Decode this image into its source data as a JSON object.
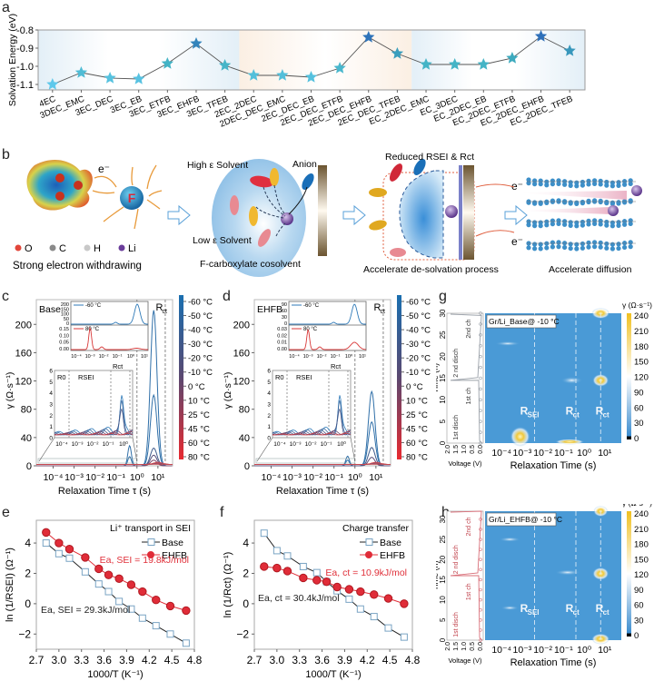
{
  "panel_labels": {
    "a": "a",
    "b": "b",
    "c": "c",
    "d": "d",
    "e": "e",
    "f": "f",
    "g": "g",
    "h": "h"
  },
  "chart_data": [
    {
      "id": "a",
      "type": "line",
      "marker": "star",
      "ylabel": "Solvation Energy (eV)",
      "ylim": [
        -1.13,
        -0.8
      ],
      "yticks": [
        "-0.8",
        "-0.9",
        "-1.0",
        "-1.1"
      ],
      "yticks_values": [
        -0.8,
        -0.9,
        -1.0,
        -1.1
      ],
      "categories": [
        "4EC",
        "3DEC_EMC",
        "3EC_DEC",
        "3EC_EB",
        "3EC_ETFB",
        "3EC_EHFB",
        "3EC_TFEB",
        "2EC_2DEC",
        "2DEC_DEC_EMC",
        "2EC_DEC_EB",
        "2EC_DEC_ETFB",
        "2EC_DEC_EHFB",
        "2EC_DEC_TFEB",
        "EC_2DEC_EMC",
        "EC_3DEC",
        "EC_2DEC_EB",
        "EC_2DEC_ETFB",
        "EC_2DEC_EHFB",
        "EC_2DEC_TFEB"
      ],
      "values": [
        -1.1,
        -1.035,
        -1.065,
        -1.07,
        -0.985,
        -0.875,
        -0.995,
        -1.05,
        -1.05,
        -1.06,
        -1.01,
        -0.84,
        -0.93,
        -0.99,
        -0.99,
        -0.99,
        -0.955,
        -0.835,
        -0.915
      ],
      "background_regions": [
        "blue",
        "orange",
        "blue"
      ]
    },
    {
      "id": "c",
      "type": "line",
      "title": "Base",
      "xlabel": "Relaxation Time τ (s)",
      "ylabel": "γ (Ω·s⁻¹)",
      "yticks": [
        "0",
        "40",
        "80",
        "120",
        "160",
        "200"
      ],
      "xticks": [
        "10⁻⁴",
        "10⁻³",
        "10⁻²",
        "10⁻¹",
        "10⁰",
        "10¹"
      ],
      "annotations": [
        "Rct"
      ],
      "inset_top": {
        "legend_cold": "-60 °C",
        "legend_hot": "80 °C",
        "yticks_cold": [
          "200",
          "150",
          "100",
          "50",
          "0"
        ],
        "yticks_hot": [
          "0.15",
          "0.10",
          "0.05",
          "0.00"
        ],
        "xticks": [
          "10⁻⁴",
          "10⁻³",
          "10⁻²",
          "10⁻¹",
          "10⁰",
          "10¹"
        ]
      },
      "inset_zoom": {
        "yticks": [
          "0",
          "1",
          "2",
          "3",
          "4",
          "5",
          "6"
        ],
        "xticks": [
          "10⁻⁴",
          "10⁻³",
          "10⁻²",
          "10⁻¹",
          "10⁰"
        ],
        "labels": [
          "R0",
          "RSEI",
          "Rct"
        ]
      },
      "peak_values": [
        220,
        100,
        25,
        15,
        8
      ],
      "colorbar": [
        "-60 °C",
        "-50 °C",
        "-40 °C",
        "-30 °C",
        "-20 °C",
        "-10 °C",
        "0 °C",
        "10 °C",
        "25 °C",
        "45 °C",
        "60 °C",
        "80 °C"
      ]
    },
    {
      "id": "d",
      "type": "line",
      "title": "EHFB",
      "xlabel": "Relaxation Time τ (s)",
      "ylabel": "γ (Ω·s⁻¹)",
      "yticks": [
        "0",
        "40",
        "80",
        "120",
        "160",
        "200"
      ],
      "xticks": [
        "10⁻⁴",
        "10⁻³",
        "10⁻²",
        "10⁻¹",
        "10⁰",
        "10¹"
      ],
      "annotations": [
        "Rct"
      ],
      "inset_top": {
        "legend_cold": "-60 °C",
        "legend_hot": "80 °C",
        "yticks_cold": [
          "90",
          "60",
          "30",
          "0"
        ],
        "yticks_hot": [
          "0.03",
          "0.02",
          "0.01",
          "0.00"
        ],
        "xticks": [
          "10⁻⁴",
          "10⁻³",
          "10⁻²",
          "10⁻¹",
          "10⁰",
          "10¹"
        ]
      },
      "inset_zoom": {
        "yticks": [
          "0",
          "1",
          "2",
          "3",
          "4",
          "5",
          "6"
        ],
        "xticks": [
          "10⁻⁴",
          "10⁻³",
          "10⁻²",
          "10⁻¹",
          "10⁰"
        ],
        "labels": [
          "R0",
          "RSEI",
          "Rct"
        ]
      },
      "peak_values": [
        105,
        62,
        26,
        12
      ],
      "colorbar": [
        "-60 °C",
        "-50 °C",
        "-40 °C",
        "-30 °C",
        "-20 °C",
        "-10 °C",
        "0 °C",
        "10 °C",
        "25 °C",
        "45 °C",
        "60 °C",
        "80 °C"
      ]
    },
    {
      "id": "e",
      "type": "line",
      "title": "Li⁺ transport in SEI",
      "xlabel": "1000/T (K⁻¹)",
      "ylabel": "ln (1/RSEI) (Ω⁻¹)",
      "xlim": [
        2.7,
        4.8
      ],
      "ylim": [
        -3,
        5.5
      ],
      "xticks": [
        "2.7",
        "3.0",
        "3.3",
        "3.6",
        "3.9",
        "4.2",
        "4.5",
        "4.8"
      ],
      "yticks": [
        "-2",
        "0",
        "2",
        "4"
      ],
      "x": [
        2.83,
        3.0,
        3.14,
        3.35,
        3.53,
        3.66,
        3.8,
        3.96,
        4.11,
        4.29,
        4.48,
        4.69
      ],
      "series": [
        {
          "name": "Base",
          "color": "#222222",
          "marker": "square",
          "values": [
            4.0,
            3.3,
            3.0,
            2.1,
            1.3,
            0.8,
            0.15,
            -0.35,
            -0.95,
            -1.45,
            -2.0,
            -2.6
          ]
        },
        {
          "name": "EHFB",
          "color": "#e0303a",
          "marker": "circle",
          "values": [
            4.7,
            4.0,
            3.6,
            3.05,
            2.3,
            1.9,
            1.65,
            1.25,
            0.8,
            0.25,
            -0.15,
            -0.45
          ]
        }
      ],
      "annotations": [
        {
          "text": "Ea, SEI = 19.8kJ/mol",
          "color": "#e0303a"
        },
        {
          "text": "Ea, SEI = 29.3kJ/mol",
          "color": "#222222"
        }
      ]
    },
    {
      "id": "f",
      "type": "line",
      "title": "Charge transfer",
      "xlabel": "1000/T (K⁻¹)",
      "ylabel": "ln (1/Rct) (Ω⁻¹)",
      "xlim": [
        2.7,
        4.8
      ],
      "ylim": [
        -3,
        5.5
      ],
      "xticks": [
        "2.7",
        "3.0",
        "3.3",
        "3.6",
        "3.9",
        "4.2",
        "4.5",
        "4.8"
      ],
      "yticks": [
        "-2",
        "0",
        "2",
        "4"
      ],
      "x": [
        2.83,
        3.0,
        3.14,
        3.35,
        3.53,
        3.66,
        3.8,
        3.96,
        4.11,
        4.29,
        4.48,
        4.69
      ],
      "series": [
        {
          "name": "Base",
          "color": "#222222",
          "marker": "square",
          "values": [
            4.65,
            3.5,
            3.15,
            2.45,
            2.05,
            1.45,
            0.85,
            0.3,
            -0.35,
            -0.85,
            -1.6,
            -2.2
          ]
        },
        {
          "name": "EHFB",
          "color": "#e0303a",
          "marker": "circle",
          "values": [
            2.45,
            2.35,
            2.15,
            1.7,
            1.55,
            1.45,
            1.1,
            0.95,
            0.8,
            0.6,
            0.35,
            0.0
          ]
        }
      ],
      "annotations": [
        {
          "text": "Ea, ct = 10.9kJ/mol",
          "color": "#e0303a"
        },
        {
          "text": "Ea, ct = 30.4kJ/mol",
          "color": "#222222"
        }
      ]
    },
    {
      "id": "g",
      "type": "heatmap",
      "title": "Gr/Li_Base@ -10 °C",
      "xlabel": "Relaxation Time (s)",
      "ylabel": "Time (h)",
      "xticks": [
        "10⁻⁴",
        "10⁻³",
        "10⁻²",
        "10⁻¹",
        "10⁰",
        "10¹"
      ],
      "yticks": [
        "0",
        "5",
        "10",
        "15",
        "20",
        "25",
        "30"
      ],
      "ylim": [
        0,
        30
      ],
      "voltage_axis": {
        "label": "Voltage (V)",
        "ticks": [
          "2.0",
          "1.5",
          "1.0",
          "0.5",
          "0.0"
        ],
        "segments": [
          "1st disch",
          "1st ch",
          "2 nd disch",
          "2nd ch"
        ],
        "color": "#9aa0a8"
      },
      "annotations": [
        "RSEI",
        "Rct",
        "Rct"
      ],
      "colorbar": {
        "label": "γ (Ω·s⁻¹)",
        "ticks": [
          "240",
          "210",
          "180",
          "150",
          "120",
          "90",
          "60",
          "30",
          "0"
        ]
      }
    },
    {
      "id": "h",
      "type": "heatmap",
      "title": "Gr/Li_EHFB@ -10 °C",
      "xlabel": "Relaxation Time (s)",
      "ylabel": "Time (h)",
      "xticks": [
        "10⁻⁴",
        "10⁻³",
        "10⁻²",
        "10⁻¹",
        "10⁰",
        "10¹"
      ],
      "yticks": [
        "0",
        "5",
        "10",
        "15",
        "20",
        "25",
        "30"
      ],
      "ylim": [
        0,
        32
      ],
      "voltage_axis": {
        "label": "Voltage (V)",
        "ticks": [
          "2.0",
          "1.5",
          "1.0",
          "0.5",
          "0.0"
        ],
        "segments": [
          "1st disch",
          "1st ch",
          "2 nd disch",
          "2nd ch"
        ],
        "color": "#d9707a"
      },
      "annotations": [
        "RSEI",
        "Rct",
        "Rct"
      ],
      "colorbar": {
        "label": "γ (Ω·s⁻¹)",
        "ticks": [
          "240",
          "210",
          "180",
          "150",
          "120",
          "90",
          "60",
          "30",
          "0"
        ]
      }
    }
  ],
  "schematic_b": {
    "atom_legend": [
      {
        "symbol": "O",
        "color": "#e2463a"
      },
      {
        "symbol": "C",
        "color": "#8a8a8a"
      },
      {
        "symbol": "H",
        "color": "#c8c8c8"
      },
      {
        "symbol": "Li",
        "color": "#6a3d9a"
      }
    ],
    "electron_label": "e⁻",
    "fluorine_label": "F",
    "caption_1": "Strong electron withdrawing",
    "high_eps": "High ε Solvent",
    "low_eps": "Low ε Solvent",
    "anion": "Anion",
    "f_cosolvent": "F-carboxylate cosolvent",
    "reduced": "Reduced RSEI & Rct",
    "caption_2": "Accelerate de-solvation process",
    "caption_3": "Accelerate diffusion"
  }
}
